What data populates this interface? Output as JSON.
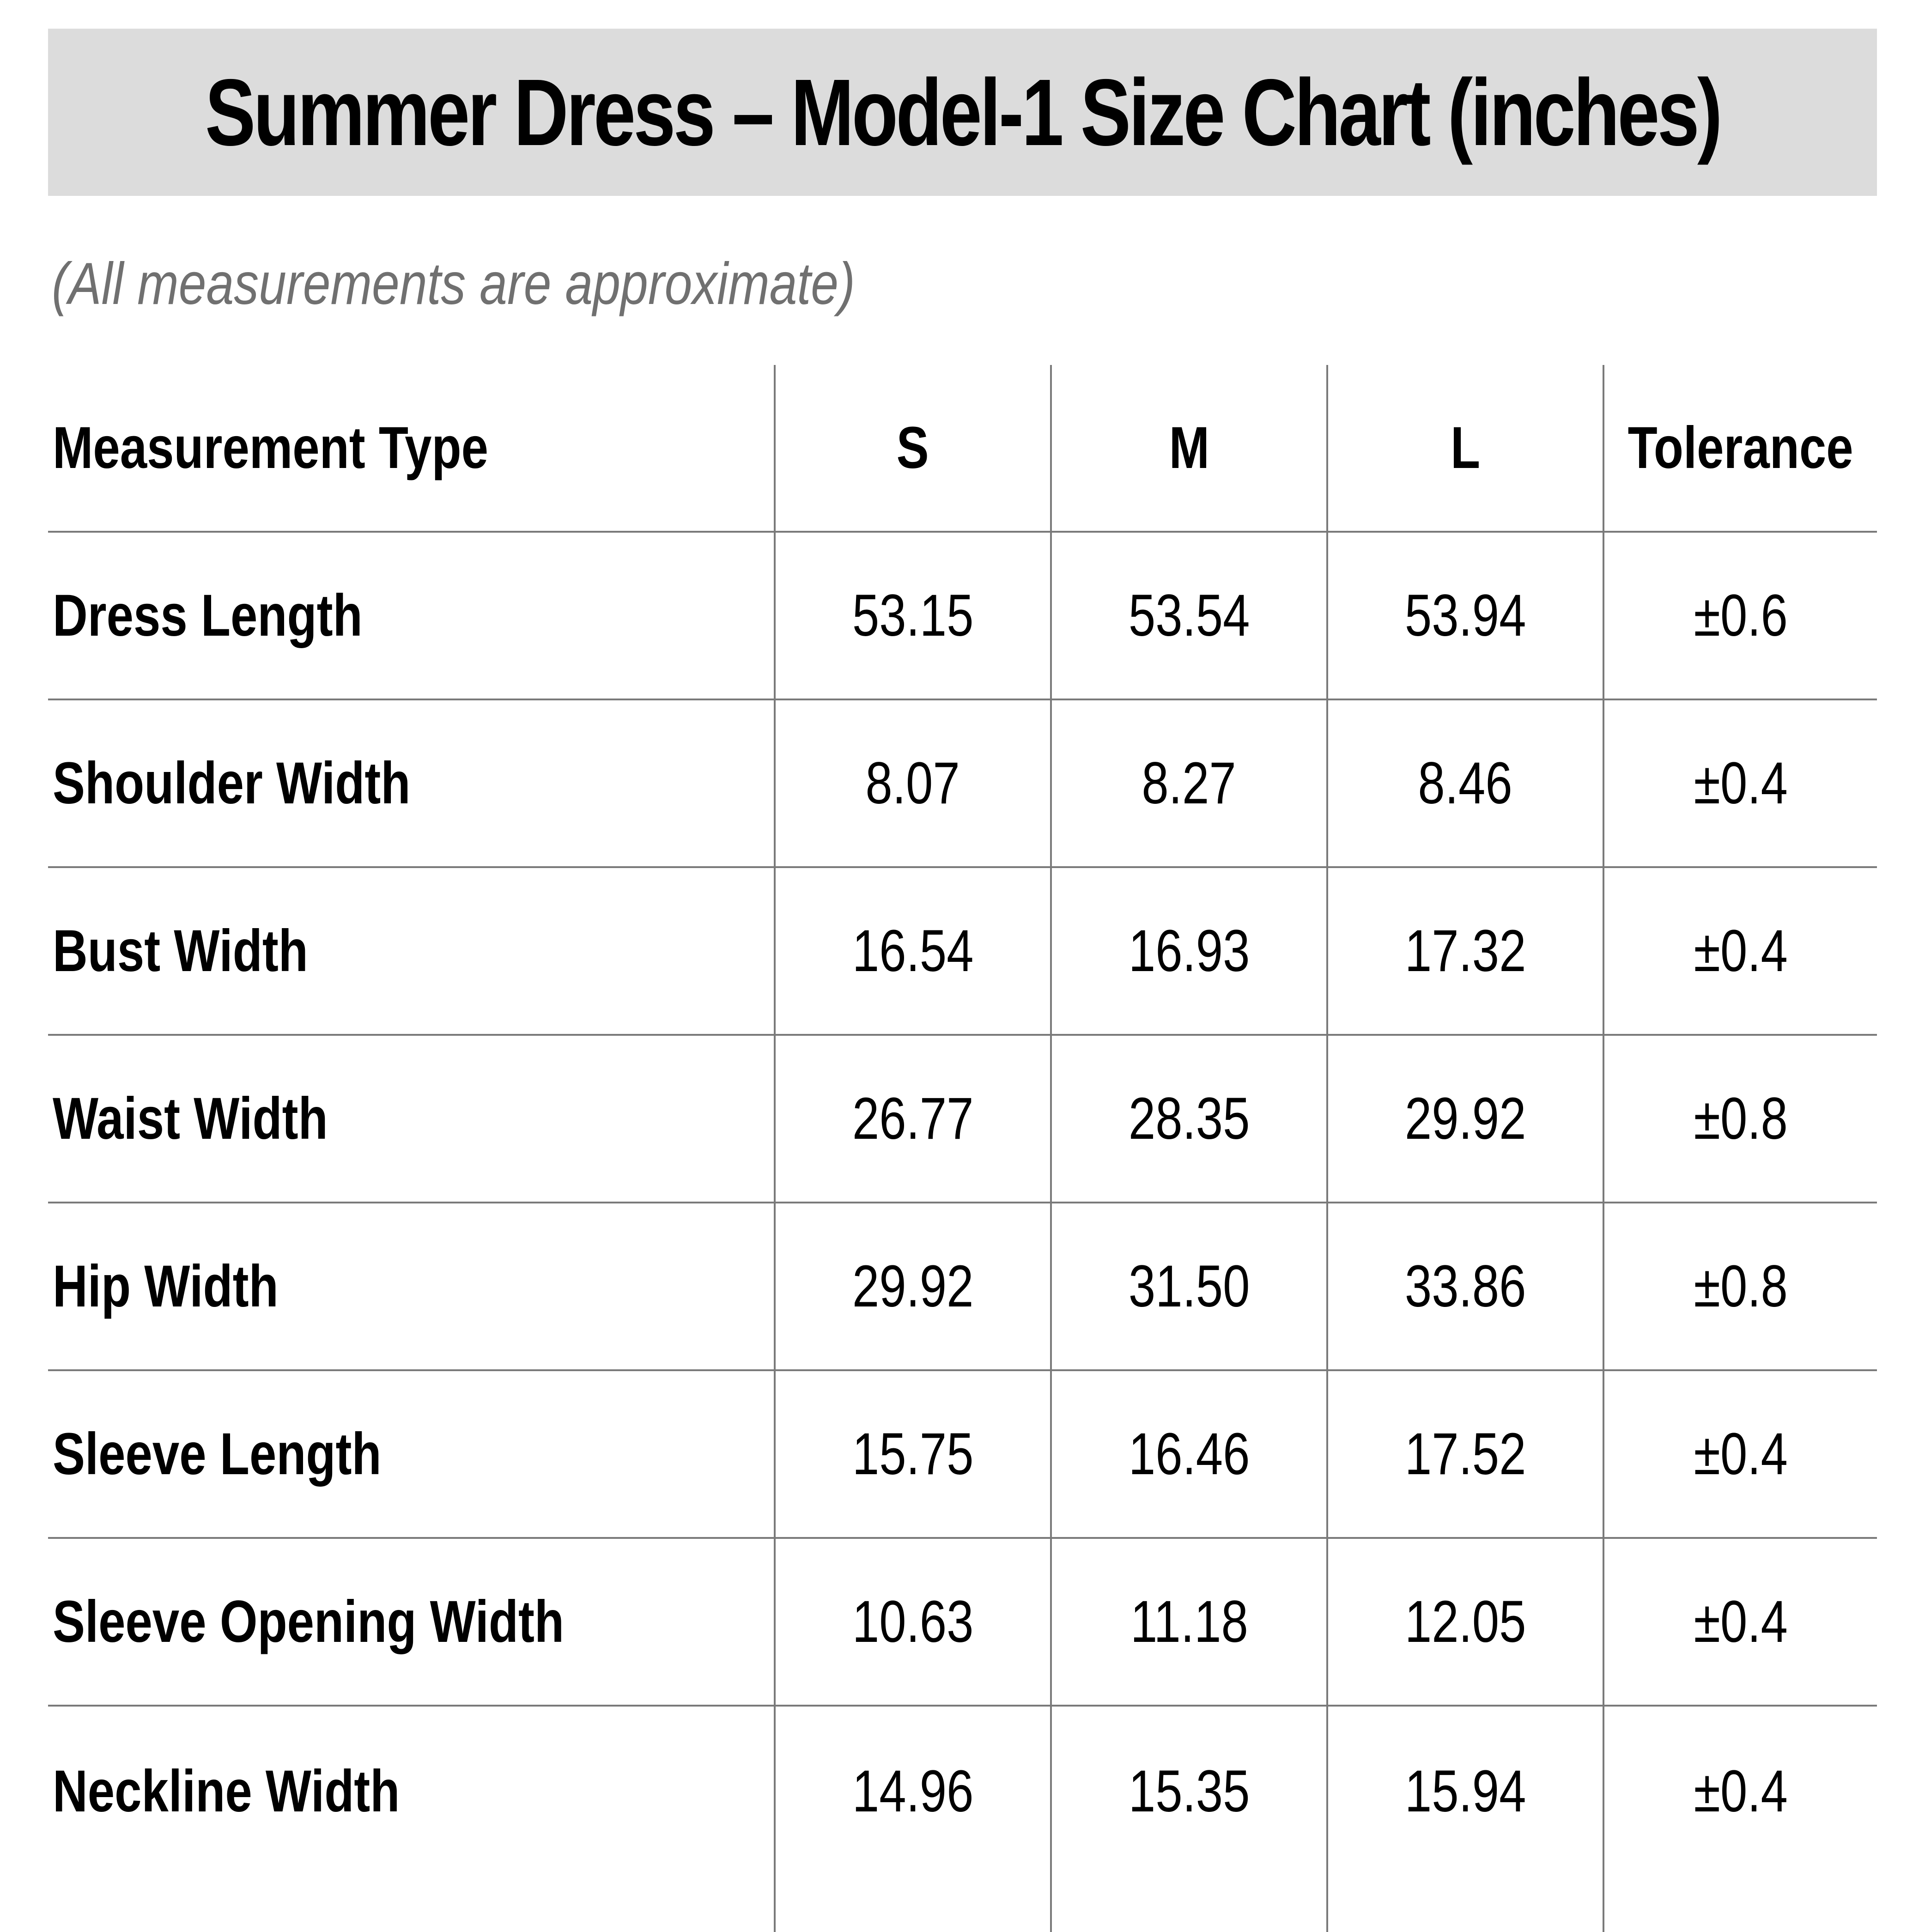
{
  "title": "Summer Dress – Model-1 Size Chart (inches)",
  "subtitle": "(All measurements are approximate)",
  "table": {
    "headers": [
      "Measurement Type",
      "S",
      "M",
      "L",
      "Tolerance"
    ],
    "rows": [
      {
        "label": "Dress Length",
        "s": "53.15",
        "m": "53.54",
        "l": "53.94",
        "tolerance": "±0.6"
      },
      {
        "label": "Shoulder Width",
        "s": "8.07",
        "m": "8.27",
        "l": "8.46",
        "tolerance": "±0.4"
      },
      {
        "label": "Bust Width",
        "s": "16.54",
        "m": "16.93",
        "l": "17.32",
        "tolerance": "±0.4"
      },
      {
        "label": "Waist Width",
        "s": "26.77",
        "m": "28.35",
        "l": "29.92",
        "tolerance": "±0.8"
      },
      {
        "label": "Hip Width",
        "s": "29.92",
        "m": "31.50",
        "l": "33.86",
        "tolerance": "±0.8"
      },
      {
        "label": "Sleeve Length",
        "s": "15.75",
        "m": "16.46",
        "l": "17.52",
        "tolerance": "±0.4"
      },
      {
        "label": "Sleeve Opening Width",
        "s": "10.63",
        "m": "11.18",
        "l": "12.05",
        "tolerance": "±0.4"
      },
      {
        "label": "Neckline Width",
        "s": "14.96",
        "m": "15.35",
        "l": "15.94",
        "tolerance": "±0.4"
      }
    ]
  },
  "colors": {
    "title_band": "#dcdcdc",
    "subtitle_text": "#707070",
    "grid_lines": "#7a7a7a",
    "text": "#000000"
  }
}
